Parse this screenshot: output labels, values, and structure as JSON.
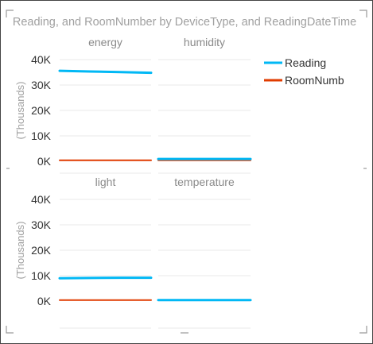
{
  "chart_data": {
    "type": "line",
    "title": "Reading, and RoomNumber by DeviceType, and ReadingDateTime",
    "ylabel": "(Thousands)",
    "yticks": [
      "40K",
      "30K",
      "20K",
      "10K",
      "0K"
    ],
    "ylim": [
      0,
      40000
    ],
    "grid": true,
    "legend_position": "top-right",
    "legend": [
      {
        "name": "Reading",
        "color": "#01B8F5"
      },
      {
        "name": "RoomNumb",
        "color": "#E03C00"
      }
    ],
    "colors": {
      "Reading": "#01B8F5",
      "RoomNumber": "#E03C00"
    },
    "panels": [
      {
        "name": "energy",
        "series": [
          {
            "name": "Reading",
            "values": [
              35600,
              35300,
              35100,
              34800
            ]
          },
          {
            "name": "RoomNumber",
            "values": [
              400,
              400,
              400,
              400
            ]
          }
        ]
      },
      {
        "name": "humidity",
        "series": [
          {
            "name": "Reading",
            "values": [
              900,
              900,
              900,
              900
            ]
          },
          {
            "name": "RoomNumber",
            "values": [
              400,
              400,
              400,
              400
            ]
          }
        ]
      },
      {
        "name": "light",
        "series": [
          {
            "name": "Reading",
            "values": [
              9000,
              9100,
              9200,
              9200
            ]
          },
          {
            "name": "RoomNumber",
            "values": [
              400,
              400,
              400,
              400
            ]
          }
        ]
      },
      {
        "name": "temperature",
        "series": [
          {
            "name": "Reading",
            "values": [
              400,
              400,
              400,
              400
            ]
          },
          {
            "name": "RoomNumber",
            "values": [
              400,
              400,
              400,
              400
            ]
          }
        ]
      }
    ]
  }
}
